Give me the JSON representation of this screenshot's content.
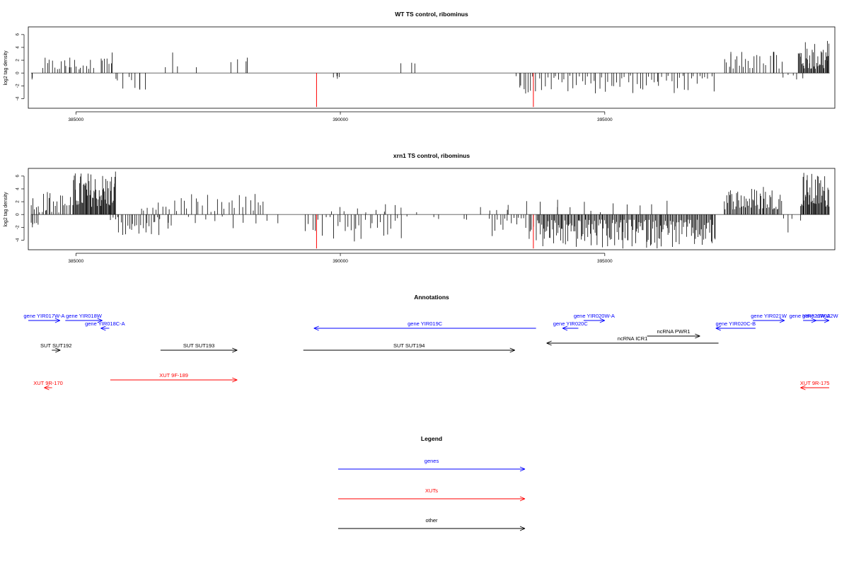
{
  "colors": {
    "gene": "#0000ff",
    "xut": "#ff0000",
    "other": "#000000",
    "line": "#000000",
    "marker": "#ff0000"
  },
  "chart_data": [
    {
      "type": "bar",
      "title": "WT TS control, ribominus",
      "ylabel": "log2 tag density",
      "xlim": [
        384100,
        399350
      ],
      "ylim": [
        -5.5,
        7.2
      ],
      "yticks": [
        -4,
        -2,
        0,
        2,
        4,
        6
      ],
      "xticks": [
        385000,
        390000,
        395000
      ],
      "markers": [
        389550,
        393650
      ],
      "positive_regions": [
        {
          "from": 384350,
          "to": 385350,
          "n": 22,
          "max": 2.4,
          "min": 0.4
        },
        {
          "from": 385450,
          "to": 385700,
          "n": 6,
          "max": 3.2,
          "min": 0.8
        },
        {
          "from": 386600,
          "to": 387400,
          "n": 3,
          "max": 3.2,
          "min": 0.9
        },
        {
          "from": 387900,
          "to": 388300,
          "n": 3,
          "max": 2.4,
          "min": 1.4
        },
        {
          "from": 390900,
          "to": 391900,
          "n": 2,
          "max": 1.6,
          "min": 1.4
        },
        {
          "from": 397250,
          "to": 397800,
          "n": 14,
          "max": 3.3,
          "min": 0.7
        },
        {
          "from": 397800,
          "to": 398400,
          "n": 10,
          "max": 3.3,
          "min": 0.7
        },
        {
          "from": 398650,
          "to": 399250,
          "n": 40,
          "max": 5.0,
          "min": 0.5
        }
      ],
      "negative_regions": [
        {
          "from": 384150,
          "to": 384200,
          "n": 1,
          "max": 1.0,
          "min": 0.5
        },
        {
          "from": 385700,
          "to": 386350,
          "n": 8,
          "max": 2.6,
          "min": 0.6
        },
        {
          "from": 389850,
          "to": 390000,
          "n": 3,
          "max": 0.9,
          "min": 0.4
        },
        {
          "from": 393300,
          "to": 397100,
          "n": 70,
          "max": 3.2,
          "min": 0.4
        },
        {
          "from": 398300,
          "to": 398800,
          "n": 4,
          "max": 1.0,
          "min": 0.3
        }
      ]
    },
    {
      "type": "bar",
      "title": "xrn1 TS control, ribominus",
      "ylabel": "log2 tag density",
      "xlim": [
        384100,
        399350
      ],
      "ylim": [
        -5.5,
        7.2
      ],
      "yticks": [
        -4,
        -2,
        0,
        2,
        4,
        6
      ],
      "xticks": [
        385000,
        390000,
        395000
      ],
      "markers": [
        389550,
        393650
      ],
      "positive_regions": [
        {
          "from": 384150,
          "to": 384950,
          "n": 25,
          "max": 3.5,
          "min": 0.3
        },
        {
          "from": 384950,
          "to": 385750,
          "n": 60,
          "max": 6.7,
          "min": 1.2
        },
        {
          "from": 386200,
          "to": 388600,
          "n": 35,
          "max": 3.2,
          "min": 0.4
        },
        {
          "from": 389700,
          "to": 391500,
          "n": 10,
          "max": 1.6,
          "min": 0.3
        },
        {
          "from": 392500,
          "to": 393300,
          "n": 4,
          "max": 1.5,
          "min": 0.4
        },
        {
          "from": 393500,
          "to": 396300,
          "n": 12,
          "max": 2.3,
          "min": 0.3
        },
        {
          "from": 397250,
          "to": 398350,
          "n": 55,
          "max": 4.3,
          "min": 0.8
        },
        {
          "from": 398700,
          "to": 399250,
          "n": 40,
          "max": 6.5,
          "min": 1.2
        }
      ],
      "negative_regions": [
        {
          "from": 384150,
          "to": 384300,
          "n": 5,
          "max": 2.0,
          "min": 1.2
        },
        {
          "from": 385650,
          "to": 386600,
          "n": 25,
          "max": 3.2,
          "min": 0.4
        },
        {
          "from": 386600,
          "to": 388900,
          "n": 12,
          "max": 2.2,
          "min": 0.3
        },
        {
          "from": 389300,
          "to": 391200,
          "n": 28,
          "max": 4.2,
          "min": 0.4
        },
        {
          "from": 391200,
          "to": 392500,
          "n": 4,
          "max": 0.8,
          "min": 0.3
        },
        {
          "from": 392800,
          "to": 393700,
          "n": 18,
          "max": 3.8,
          "min": 0.5
        },
        {
          "from": 393700,
          "to": 397100,
          "n": 180,
          "max": 5.3,
          "min": 0.8
        },
        {
          "from": 398350,
          "to": 398800,
          "n": 3,
          "max": 2.8,
          "min": 0.6
        }
      ]
    }
  ],
  "annotations": {
    "title": "Annotations",
    "features": [
      {
        "label": "gene YIR017W-A",
        "start": 384100,
        "end": 384700,
        "strand": "+",
        "kind": "gene",
        "row": 0
      },
      {
        "label": "gene YIR018W",
        "start": 384800,
        "end": 385500,
        "strand": "+",
        "kind": "gene",
        "row": 0
      },
      {
        "label": "gene YIR018C-A",
        "start": 385500,
        "end": 385600,
        "strand": "-",
        "kind": "gene",
        "row": 1
      },
      {
        "label": "SUT SUT192",
        "start": 384600,
        "end": 384650,
        "strand": "+",
        "kind": "other",
        "row": 2
      },
      {
        "label": "SUT SUT193",
        "start": 386600,
        "end": 388050,
        "strand": "+",
        "kind": "other",
        "row": 2
      },
      {
        "label": "XUT 9F-189",
        "start": 385650,
        "end": 388050,
        "strand": "+",
        "kind": "xut",
        "row": 4
      },
      {
        "label": "XUT 9R-170",
        "start": 384400,
        "end": 384550,
        "strand": "-",
        "kind": "xut",
        "row": 5
      },
      {
        "label": "gene YIR019C",
        "start": 389500,
        "end": 393700,
        "strand": "-",
        "kind": "gene",
        "row": 1
      },
      {
        "label": "SUT SUT194",
        "start": 389300,
        "end": 393300,
        "strand": "+",
        "kind": "other",
        "row": 2
      },
      {
        "label": "gene YIR020W-A",
        "start": 394600,
        "end": 395000,
        "strand": "+",
        "kind": "gene",
        "row": 0
      },
      {
        "label": "gene YIR020C",
        "start": 394200,
        "end": 394500,
        "strand": "-",
        "kind": "gene",
        "row": 1
      },
      {
        "label": "ncRNA PWR1",
        "start": 395800,
        "end": 396800,
        "strand": "+",
        "kind": "other",
        "row": "pwr1"
      },
      {
        "label": "ncRNA ICR1",
        "start": 393900,
        "end": 397150,
        "strand": "-",
        "kind": "other",
        "row": 3
      },
      {
        "label": "gene YIR021W",
        "start": 397800,
        "end": 398400,
        "strand": "+",
        "kind": "gene",
        "row": 0
      },
      {
        "label": "gene YIR021W-A",
        "start": 398750,
        "end": 399000,
        "strand": "+",
        "kind": "gene",
        "row": 0
      },
      {
        "label": "gene YIR022W",
        "start": 398900,
        "end": 399500,
        "strand": "+",
        "kind": "gene",
        "row": 0
      },
      {
        "label": "gene YIR020C-B",
        "start": 397100,
        "end": 397850,
        "strand": "-",
        "kind": "gene",
        "row": 1
      },
      {
        "label": "XUT 9R-175",
        "start": 398700,
        "end": 399900,
        "strand": "-",
        "kind": "xut",
        "row": 5
      }
    ]
  },
  "legend": {
    "title": "Legend",
    "items": [
      {
        "label": "genes",
        "kind": "gene"
      },
      {
        "label": "XUTs",
        "kind": "xut"
      },
      {
        "label": "other",
        "kind": "other"
      }
    ]
  }
}
